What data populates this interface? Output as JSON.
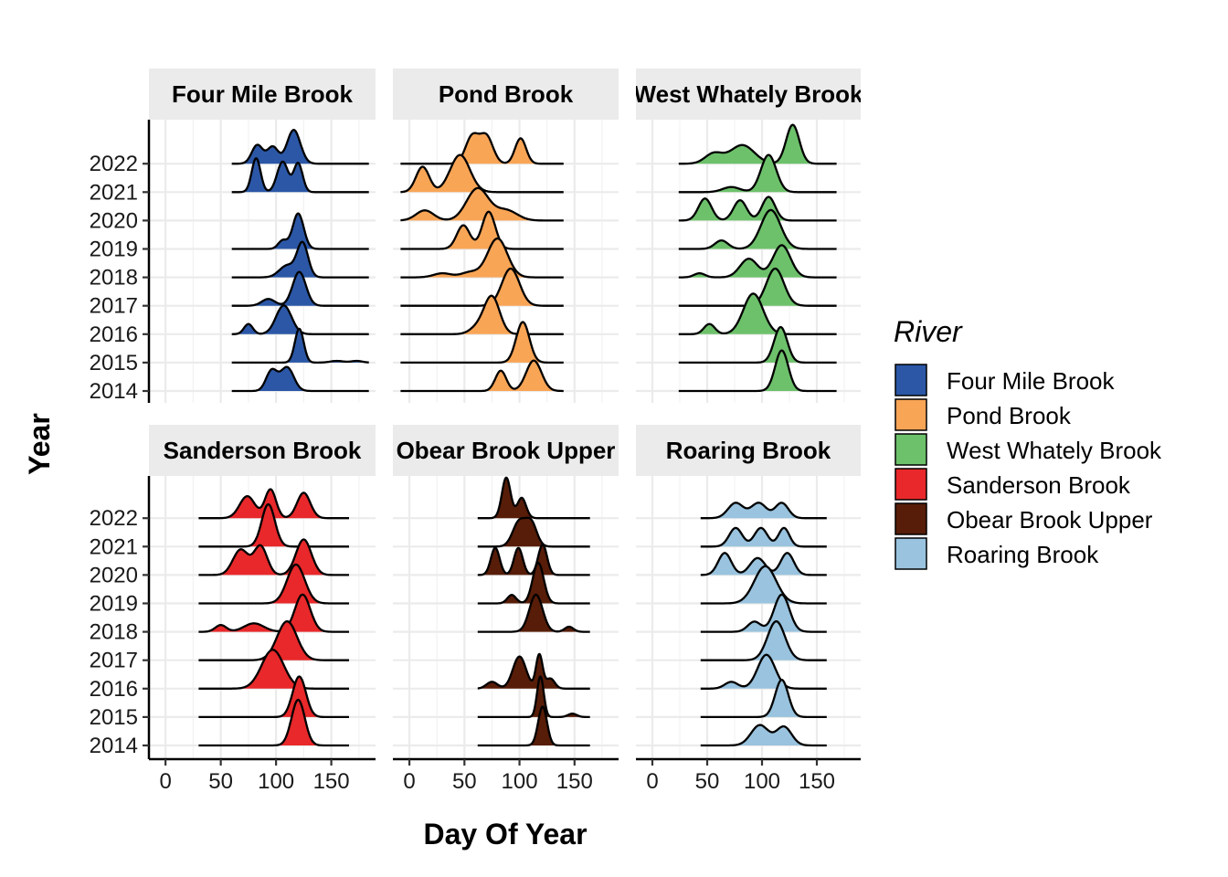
{
  "chart_data": {
    "type": "ridgeline",
    "xlabel": "Day Of Year",
    "ylabel": "Year",
    "x_ticks": [
      0,
      50,
      100,
      150
    ],
    "xlim": [
      -15,
      190
    ],
    "years": [
      "2014",
      "2015",
      "2016",
      "2017",
      "2018",
      "2019",
      "2020",
      "2021",
      "2022"
    ],
    "grid": "major and minor, light grey",
    "legend": {
      "title": "River",
      "placement": "right",
      "entries": [
        {
          "name": "Four Mile Brook",
          "color": "#2B57A6"
        },
        {
          "name": "Pond Brook",
          "color": "#F9A556"
        },
        {
          "name": "West Whately Brook",
          "color": "#6DC16B"
        },
        {
          "name": "Sanderson Brook",
          "color": "#E8282A"
        },
        {
          "name": "Obear Brook Upper",
          "color": "#571D08"
        },
        {
          "name": "Roaring Brook",
          "color": "#99C3DE"
        }
      ]
    },
    "facets": [
      {
        "name": "Four Mile Brook",
        "color": "#2B57A6",
        "x_range": [
          60,
          184
        ],
        "ridges": {
          "2022": [
            {
              "m": 83,
              "s": 5,
              "h": 0.55
            },
            {
              "m": 97,
              "s": 5,
              "h": 0.5
            },
            {
              "m": 116,
              "s": 6,
              "h": 1.0
            }
          ],
          "2021": [
            {
              "m": 82,
              "s": 4,
              "h": 1.0
            },
            {
              "m": 106,
              "s": 5,
              "h": 0.9
            },
            {
              "m": 120,
              "s": 4,
              "h": 0.85
            }
          ],
          "2020": [],
          "2019": [
            {
              "m": 106,
              "s": 4,
              "h": 0.25
            },
            {
              "m": 120,
              "s": 5,
              "h": 1.05
            }
          ],
          "2018": [
            {
              "m": 110,
              "s": 7,
              "h": 0.35
            },
            {
              "m": 124,
              "s": 5,
              "h": 1.0
            }
          ],
          "2017": [
            {
              "m": 93,
              "s": 6,
              "h": 0.2
            },
            {
              "m": 121,
              "s": 6,
              "h": 1.0
            }
          ],
          "2016": [
            {
              "m": 75,
              "s": 4,
              "h": 0.3
            },
            {
              "m": 107,
              "s": 7,
              "h": 0.85
            }
          ],
          "2015": [
            {
              "m": 121,
              "s": 4,
              "h": 1.0
            },
            {
              "m": 155,
              "s": 6,
              "h": 0.05
            },
            {
              "m": 173,
              "s": 5,
              "h": 0.05
            }
          ],
          "2014": [
            {
              "m": 96,
              "s": 5,
              "h": 0.6
            },
            {
              "m": 110,
              "s": 6,
              "h": 0.7
            }
          ]
        }
      },
      {
        "name": "Pond Brook",
        "color": "#F9A556",
        "x_range": [
          -8,
          140
        ],
        "ridges": {
          "2022": [
            {
              "m": 57,
              "s": 6,
              "h": 0.8
            },
            {
              "m": 70,
              "s": 6,
              "h": 0.8
            },
            {
              "m": 101,
              "s": 5,
              "h": 0.75
            }
          ],
          "2021": [
            {
              "m": 12,
              "s": 6,
              "h": 0.75
            },
            {
              "m": 46,
              "s": 9,
              "h": 1.1
            }
          ],
          "2020": [
            {
              "m": 14,
              "s": 8,
              "h": 0.3
            },
            {
              "m": 62,
              "s": 10,
              "h": 0.95
            },
            {
              "m": 88,
              "s": 10,
              "h": 0.3
            }
          ],
          "2019": [
            {
              "m": 49,
              "s": 6,
              "h": 0.7
            },
            {
              "m": 72,
              "s": 6,
              "h": 1.1
            }
          ],
          "2018": [
            {
              "m": 30,
              "s": 8,
              "h": 0.12
            },
            {
              "m": 55,
              "s": 8,
              "h": 0.15
            },
            {
              "m": 80,
              "s": 9,
              "h": 1.15
            }
          ],
          "2017": [
            {
              "m": 92,
              "s": 8,
              "h": 1.1
            }
          ],
          "2016": [
            {
              "m": 62,
              "s": 7,
              "h": 0.2
            },
            {
              "m": 75,
              "s": 7,
              "h": 1.1
            }
          ],
          "2015": [
            {
              "m": 103,
              "s": 6,
              "h": 1.2
            }
          ],
          "2014": [
            {
              "m": 83,
              "s": 5,
              "h": 0.6
            },
            {
              "m": 113,
              "s": 7,
              "h": 0.9
            }
          ]
        }
      },
      {
        "name": "West Whately Brook",
        "color": "#6DC16B",
        "x_range": [
          24,
          168
        ],
        "ridges": {
          "2022": [
            {
              "m": 56,
              "s": 8,
              "h": 0.3
            },
            {
              "m": 82,
              "s": 11,
              "h": 0.55
            },
            {
              "m": 128,
              "s": 6,
              "h": 1.15
            }
          ],
          "2021": [
            {
              "m": 72,
              "s": 8,
              "h": 0.15
            },
            {
              "m": 106,
              "s": 7,
              "h": 1.1
            }
          ],
          "2020": [
            {
              "m": 48,
              "s": 6,
              "h": 0.65
            },
            {
              "m": 80,
              "s": 6,
              "h": 0.6
            },
            {
              "m": 106,
              "s": 6,
              "h": 0.7
            }
          ],
          "2019": [
            {
              "m": 63,
              "s": 6,
              "h": 0.25
            },
            {
              "m": 108,
              "s": 9,
              "h": 1.15
            }
          ],
          "2018": [
            {
              "m": 43,
              "s": 5,
              "h": 0.12
            },
            {
              "m": 88,
              "s": 8,
              "h": 0.55
            },
            {
              "m": 118,
              "s": 8,
              "h": 0.95
            }
          ],
          "2017": [
            {
              "m": 112,
              "s": 8,
              "h": 1.1
            }
          ],
          "2016": [
            {
              "m": 52,
              "s": 5,
              "h": 0.3
            },
            {
              "m": 92,
              "s": 9,
              "h": 1.2
            }
          ],
          "2015": [
            {
              "m": 117,
              "s": 6,
              "h": 1.05
            }
          ],
          "2014": [
            {
              "m": 118,
              "s": 6,
              "h": 1.2
            }
          ]
        }
      },
      {
        "name": "Sanderson Brook",
        "color": "#E8282A",
        "x_range": [
          30,
          166
        ],
        "ridges": {
          "2022": [
            {
              "m": 74,
              "s": 7,
              "h": 0.65
            },
            {
              "m": 95,
              "s": 5,
              "h": 0.85
            },
            {
              "m": 125,
              "s": 6,
              "h": 0.75
            }
          ],
          "2021": [
            {
              "m": 93,
              "s": 6,
              "h": 1.25
            }
          ],
          "2020": [
            {
              "m": 68,
              "s": 7,
              "h": 0.75
            },
            {
              "m": 86,
              "s": 6,
              "h": 0.85
            },
            {
              "m": 125,
              "s": 7,
              "h": 1.05
            }
          ],
          "2019": [
            {
              "m": 118,
              "s": 8,
              "h": 1.15
            }
          ],
          "2018": [
            {
              "m": 50,
              "s": 5,
              "h": 0.2
            },
            {
              "m": 80,
              "s": 9,
              "h": 0.25
            },
            {
              "m": 124,
              "s": 7,
              "h": 1.1
            }
          ],
          "2017": [
            {
              "m": 110,
              "s": 9,
              "h": 1.15
            }
          ],
          "2016": [
            {
              "m": 97,
              "s": 10,
              "h": 1.15
            }
          ],
          "2015": [
            {
              "m": 121,
              "s": 6,
              "h": 1.2
            }
          ],
          "2014": [
            {
              "m": 120,
              "s": 6,
              "h": 1.35
            }
          ]
        }
      },
      {
        "name": "Obear Brook Upper",
        "color": "#571D08",
        "x_range": [
          62,
          164
        ],
        "ridges": {
          "2022": [
            {
              "m": 88,
              "s": 4,
              "h": 1.2
            },
            {
              "m": 102,
              "s": 4,
              "h": 0.6
            }
          ],
          "2021": [
            {
              "m": 100,
              "s": 6,
              "h": 0.75
            },
            {
              "m": 111,
              "s": 5,
              "h": 0.65
            }
          ],
          "2020": [
            {
              "m": 78,
              "s": 4,
              "h": 0.8
            },
            {
              "m": 99,
              "s": 4,
              "h": 0.8
            },
            {
              "m": 121,
              "s": 4,
              "h": 0.9
            }
          ],
          "2019": [
            {
              "m": 93,
              "s": 4,
              "h": 0.25
            },
            {
              "m": 117,
              "s": 5,
              "h": 1.2
            }
          ],
          "2018": [
            {
              "m": 115,
              "s": 6,
              "h": 1.1
            },
            {
              "m": 145,
              "s": 4,
              "h": 0.15
            }
          ],
          "2017": [],
          "2016": [
            {
              "m": 75,
              "s": 5,
              "h": 0.2
            },
            {
              "m": 100,
              "s": 6,
              "h": 0.95
            },
            {
              "m": 118,
              "s": 3,
              "h": 1.0
            },
            {
              "m": 128,
              "s": 4,
              "h": 0.3
            }
          ],
          "2015": [
            {
              "m": 119,
              "s": 3,
              "h": 1.2
            },
            {
              "m": 148,
              "s": 4,
              "h": 0.1
            }
          ],
          "2014": [
            {
              "m": 121,
              "s": 4,
              "h": 1.15
            }
          ]
        }
      },
      {
        "name": "Roaring Brook",
        "color": "#99C3DE",
        "x_range": [
          44,
          159
        ],
        "ridges": {
          "2022": [
            {
              "m": 76,
              "s": 7,
              "h": 0.45
            },
            {
              "m": 97,
              "s": 7,
              "h": 0.45
            },
            {
              "m": 118,
              "s": 6,
              "h": 0.45
            }
          ],
          "2021": [
            {
              "m": 76,
              "s": 6,
              "h": 0.55
            },
            {
              "m": 99,
              "s": 6,
              "h": 0.55
            },
            {
              "m": 120,
              "s": 5,
              "h": 0.55
            }
          ],
          "2020": [
            {
              "m": 66,
              "s": 6,
              "h": 0.65
            },
            {
              "m": 96,
              "s": 7,
              "h": 0.5
            },
            {
              "m": 123,
              "s": 6,
              "h": 0.65
            }
          ],
          "2019": [
            {
              "m": 103,
              "s": 10,
              "h": 1.1
            }
          ],
          "2018": [
            {
              "m": 93,
              "s": 6,
              "h": 0.3
            },
            {
              "m": 118,
              "s": 7,
              "h": 1.1
            }
          ],
          "2017": [
            {
              "m": 113,
              "s": 8,
              "h": 1.15
            }
          ],
          "2016": [
            {
              "m": 72,
              "s": 6,
              "h": 0.2
            },
            {
              "m": 104,
              "s": 8,
              "h": 1.0
            }
          ],
          "2015": [
            {
              "m": 118,
              "s": 6,
              "h": 1.1
            }
          ],
          "2014": [
            {
              "m": 98,
              "s": 8,
              "h": 0.6
            },
            {
              "m": 120,
              "s": 7,
              "h": 0.55
            }
          ]
        }
      }
    ]
  }
}
